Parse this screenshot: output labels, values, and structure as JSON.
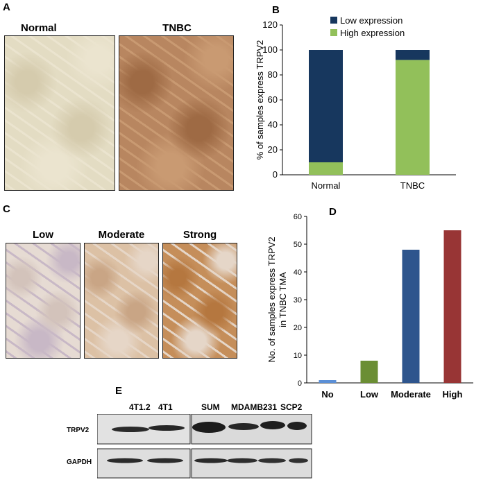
{
  "panels": {
    "a": {
      "label": "A",
      "images": [
        {
          "label": "Normal",
          "colors": [
            "#e3dcc3",
            "#d5cbad",
            "#ebe4cf"
          ]
        },
        {
          "label": "TNBC",
          "colors": [
            "#b88660",
            "#9e6a44",
            "#c99a72"
          ]
        }
      ]
    },
    "b": {
      "label": "B"
    },
    "c": {
      "label": "C",
      "images": [
        {
          "label": "Low",
          "colors": [
            "#e6dbd3",
            "#d3c3bb",
            "#c8b8c6"
          ]
        },
        {
          "label": "Moderate",
          "colors": [
            "#dcc1a5",
            "#c9a585",
            "#e6d6c7"
          ]
        },
        {
          "label": "Strong",
          "colors": [
            "#c58e5a",
            "#b5773f",
            "#e5d6c8"
          ]
        }
      ]
    },
    "d": {
      "label": "D"
    },
    "e": {
      "label": "E",
      "lane_labels_left": [
        "4T1.2",
        "4T1"
      ],
      "lane_labels_right": [
        "SUM",
        "MDAMB231",
        "SCP2"
      ],
      "row_labels": [
        "TRPV2",
        "GAPDH"
      ]
    }
  },
  "chart_data": [
    {
      "type": "bar",
      "stacked": true,
      "categories": [
        "Normal",
        "TNBC"
      ],
      "series": [
        {
          "name": "Low expression",
          "values": [
            90,
            8
          ],
          "color": "#17375e"
        },
        {
          "name": "High expression",
          "values": [
            10,
            92
          ],
          "color": "#92c05a"
        }
      ],
      "ylabel": "% of  samples express TRPV2",
      "ylim": [
        0,
        120
      ],
      "yticks": [
        0,
        20,
        40,
        60,
        80,
        100,
        120
      ],
      "legend": "top-center",
      "grid": false
    },
    {
      "type": "bar",
      "categories": [
        "No",
        "Low",
        "Moderate",
        "High"
      ],
      "values": [
        1,
        8,
        48,
        55
      ],
      "colors": [
        "#5b8fd6",
        "#6b8e34",
        "#2e558d",
        "#983535"
      ],
      "ylabel": "No. of samples express TRPV2",
      "ylabel2": "in TNBC TMA",
      "ylim": [
        0,
        60
      ],
      "yticks": [
        0,
        10,
        20,
        30,
        40,
        50,
        60
      ],
      "grid": false
    }
  ]
}
